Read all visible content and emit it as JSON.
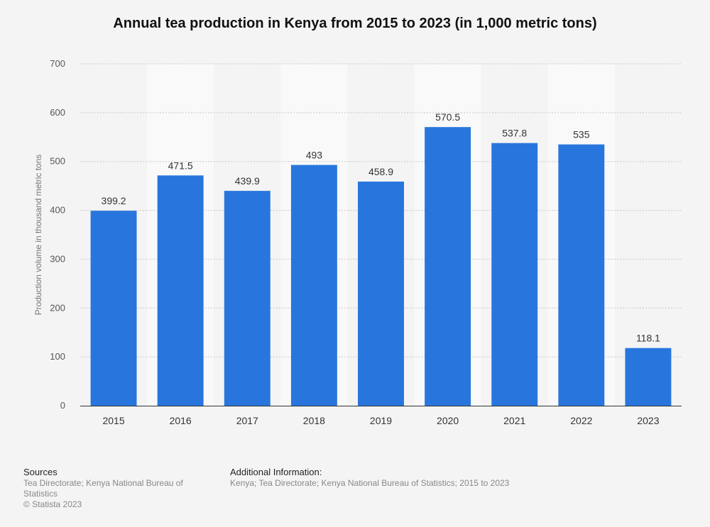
{
  "chart_data": {
    "type": "bar",
    "title": "Annual tea production in Kenya from 2015 to 2023 (in 1,000 metric tons)",
    "xlabel": "",
    "ylabel": "Production volume in thousand metric tons",
    "categories": [
      "2015",
      "2016",
      "2017",
      "2018",
      "2019",
      "2020",
      "2021",
      "2022",
      "2023"
    ],
    "values": [
      399.2,
      471.5,
      439.9,
      493,
      458.9,
      570.5,
      537.8,
      535,
      118.1
    ],
    "value_labels": [
      "399.2",
      "471.5",
      "439.9",
      "493",
      "458.9",
      "570.5",
      "537.8",
      "535",
      "118.1"
    ],
    "ylim": [
      0,
      700
    ],
    "yticks": [
      0,
      100,
      200,
      300,
      400,
      500,
      600,
      700
    ],
    "ytick_labels": [
      "0",
      "100",
      "200",
      "300",
      "400",
      "500",
      "600",
      "700"
    ],
    "grid": true,
    "bar_color": "#2876dd",
    "alt_band_color": "#f9f9f9"
  },
  "footer": {
    "sources_heading": "Sources",
    "sources_text": "Tea Directorate; Kenya National Bureau of Statistics",
    "copyright": "© Statista 2023",
    "additional_heading": "Additional Information:",
    "additional_text": "Kenya; Tea Directorate; Kenya National Bureau of Statistics; 2015 to 2023"
  }
}
